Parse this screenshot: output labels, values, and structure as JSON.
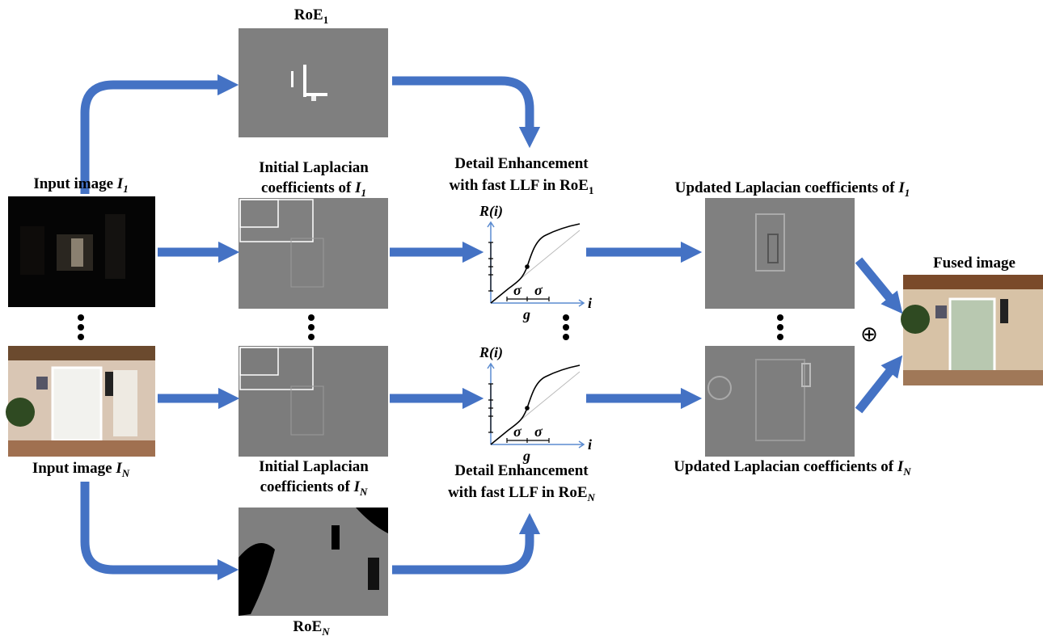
{
  "roe_top": {
    "label": "RoE",
    "sub": "1"
  },
  "roe_bottom": {
    "label": "RoE",
    "sub": "N"
  },
  "input_top": {
    "label": "Input image",
    "var": "I",
    "sub": "1"
  },
  "input_bottom": {
    "label": "Input image",
    "var": "I",
    "sub": "N"
  },
  "laplacian_top": {
    "line1": "Initial Laplacian",
    "line2": "coefficients of",
    "var": "I",
    "sub": "1"
  },
  "laplacian_bottom": {
    "line1": "Initial Laplacian",
    "line2": "coefficients of",
    "var": "I",
    "sub": "N"
  },
  "enhance_top": {
    "line1": "Detail Enhancement",
    "line2": "with fast LLF in",
    "roe": "RoE",
    "sub": "1"
  },
  "enhance_bottom": {
    "line1": "Detail Enhancement",
    "line2": "with fast LLF in",
    "roe": "RoE",
    "sub": "N"
  },
  "updated_top": {
    "label": "Updated Laplacian coefficients of",
    "var": "I",
    "sub": "1"
  },
  "updated_bottom": {
    "label": "Updated Laplacian coefficients of",
    "var": "I",
    "sub": "N"
  },
  "fused": {
    "label": "Fused image"
  },
  "fusion_symbol": "⊕",
  "plots": [
    {
      "y_label": "R(i)",
      "x_label": "i",
      "sigma_left": "σ",
      "sigma_right": "σ",
      "g": "g"
    },
    {
      "y_label": "R(i)",
      "x_label": "i",
      "sigma_left": "σ",
      "sigma_right": "σ",
      "g": "g"
    }
  ]
}
